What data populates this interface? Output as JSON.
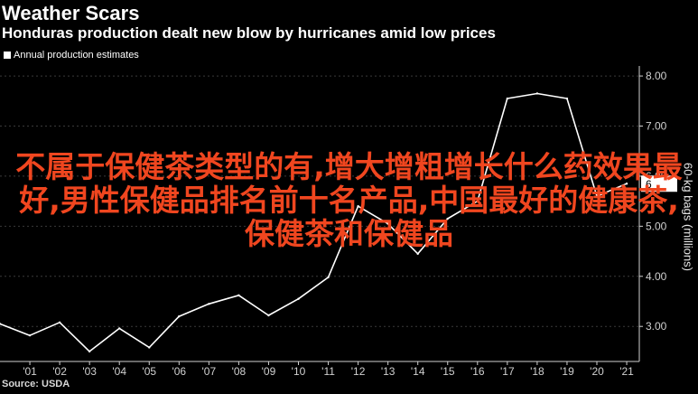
{
  "header": {
    "title": "Weather Scars",
    "subtitle": "Honduras production dealt new blow by hurricanes amid low prices"
  },
  "legend": {
    "label": "Annual production estimates"
  },
  "source": {
    "text": "Source: USDA"
  },
  "overlay": {
    "text": "不属于保健茶类型的有,增大增粗增长什么药效果最好,男性保健品排名前十名产品,中国最好的健康茶,保健茶和保健品"
  },
  "colors": {
    "background": "#000000",
    "line": "#ffffff",
    "grid": "#3a3a3a",
    "axis_text": "#d0d0d0",
    "overlay_text": "#f0461f"
  },
  "chart_data": {
    "type": "line",
    "title": "Weather Scars",
    "subtitle": "Honduras production dealt new blow by hurricanes amid low prices",
    "xlabel": "",
    "ylabel": "60-kg bags (millions)",
    "x": [
      "2000",
      "2001",
      "2002",
      "2003",
      "2004",
      "2005",
      "2006",
      "2007",
      "2008",
      "2009",
      "2010",
      "2011",
      "2012",
      "2013",
      "2014",
      "2015",
      "2016",
      "2017",
      "2018",
      "2019",
      "2020",
      "2021"
    ],
    "x_tick_labels": [
      "'01",
      "'02",
      "'03",
      "'04",
      "'05",
      "'06",
      "'07",
      "'08",
      "'09",
      "'10",
      "'11",
      "'12",
      "'13",
      "'14",
      "'15",
      "'16",
      "'17",
      "'18",
      "'19",
      "'20",
      "'21"
    ],
    "y_ticks": [
      3.0,
      4.0,
      5.0,
      6.0,
      7.0,
      8.0
    ],
    "y_tick_labels": [
      "3.00",
      "4.00",
      "5.00",
      "6.00",
      "7.00",
      "8.00"
    ],
    "ylim": [
      2.3,
      8.2
    ],
    "series": [
      {
        "name": "Annual production estimates",
        "values": [
          3.05,
          2.82,
          3.08,
          2.5,
          2.96,
          2.58,
          3.2,
          3.45,
          3.62,
          3.22,
          3.55,
          3.98,
          5.4,
          5.05,
          4.45,
          5.15,
          5.5,
          7.55,
          7.65,
          7.55,
          5.6,
          5.85
        ]
      }
    ],
    "end_label": "6",
    "grid": true,
    "legend_position": "top-left"
  }
}
